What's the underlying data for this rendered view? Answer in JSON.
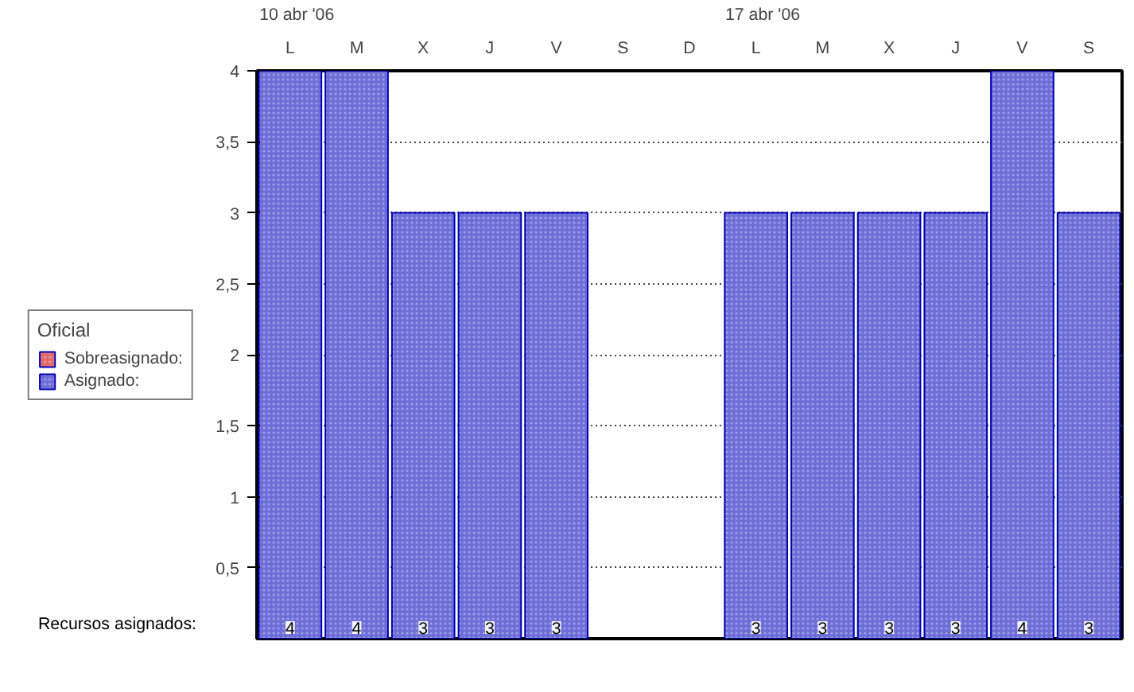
{
  "chart_data": {
    "type": "bar",
    "categories": [
      "L",
      "M",
      "X",
      "J",
      "V",
      "S",
      "D",
      "L",
      "M",
      "X",
      "J",
      "V",
      "S"
    ],
    "series": [
      {
        "name": "Sobreasignado:",
        "color": "#e06a6a",
        "values": [
          null,
          null,
          null,
          null,
          null,
          null,
          null,
          null,
          null,
          null,
          null,
          null,
          null
        ]
      },
      {
        "name": "Asignado:",
        "color": "#6e6ed8",
        "values": [
          4,
          4,
          3,
          3,
          3,
          null,
          null,
          3,
          3,
          3,
          3,
          4,
          3
        ]
      }
    ],
    "legend_title": "Oficial",
    "legend": "left",
    "ylim": [
      0,
      4
    ],
    "yticks": [
      {
        "value": 0.5,
        "label": "0,5"
      },
      1,
      {
        "value": 1.5,
        "label": "1,5"
      },
      2,
      {
        "value": 2.5,
        "label": "2,5"
      },
      3,
      {
        "value": 3.5,
        "label": "3,5"
      },
      4
    ],
    "grid": "y",
    "data_labels": true,
    "annotations": [
      "10 abr '06",
      "17 abr '06",
      "Recursos asignados:"
    ]
  }
}
